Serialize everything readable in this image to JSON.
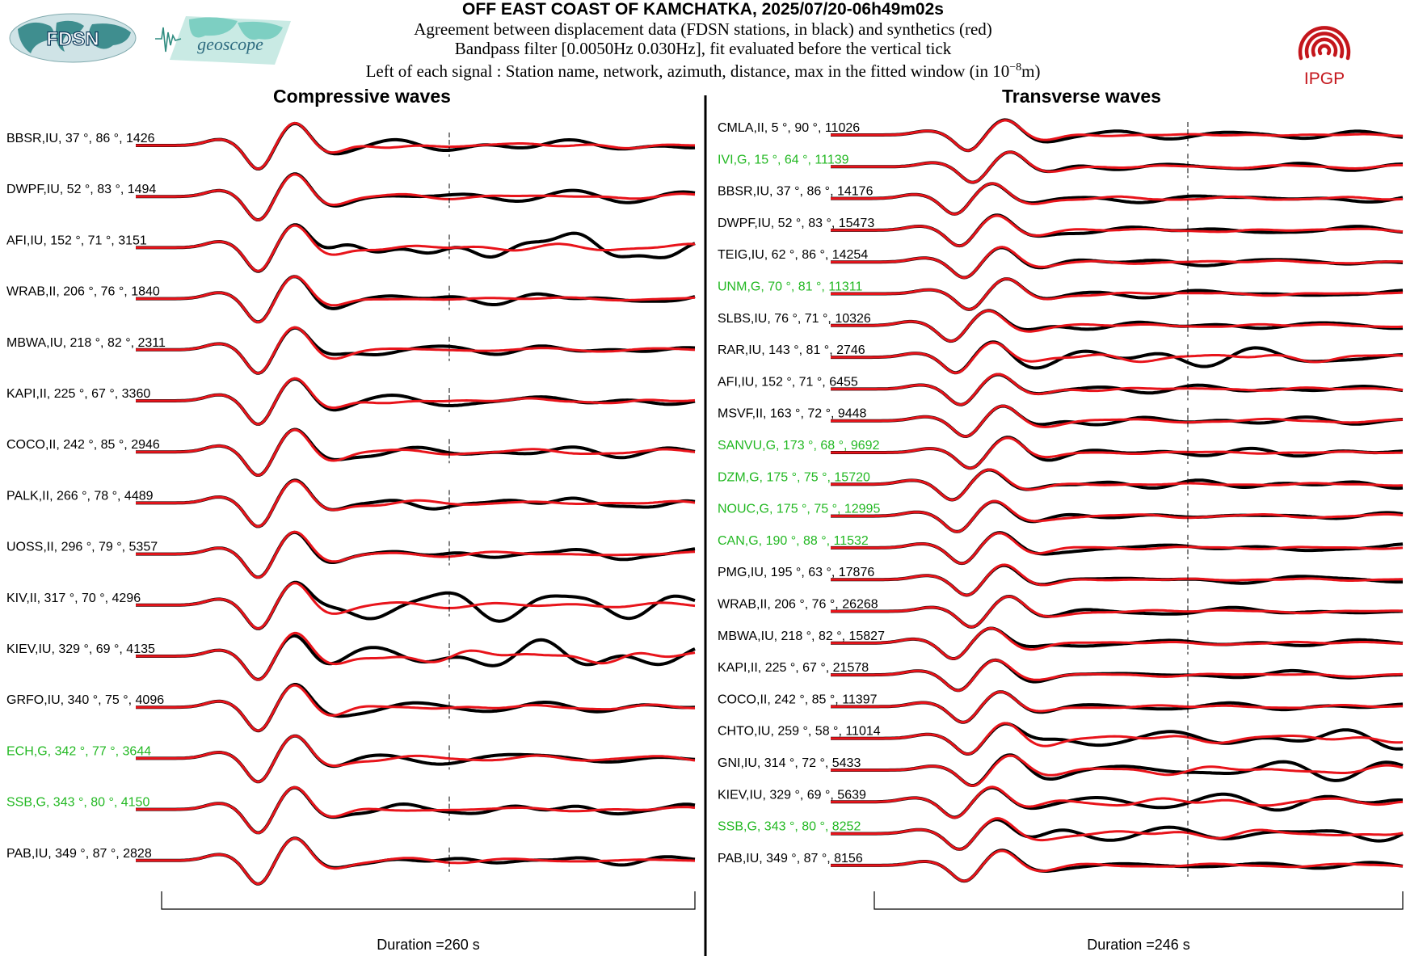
{
  "header": {
    "title": "OFF EAST COAST OF KAMCHATKA, 2025/07/20-06h49m02s",
    "line1": "Agreement between displacement data (FDSN stations, in black) and synthetics (red)",
    "line2": "Bandpass filter [0.0050Hz 0.030Hz], fit evaluated before the vertical tick",
    "line3_prefix": "Left of each signal : Station name, network, azimuth, distance, max in the fitted window (in 10",
    "line3_exp": "−8",
    "line3_suffix": "m)"
  },
  "logos": {
    "fdsn": "FDSN",
    "geoscope": "geoscope",
    "ipgp": "IPGP"
  },
  "colors": {
    "data": "#000000",
    "synthetic": "#e8141b",
    "geoscope_label": "#22b822",
    "default_label": "#000000",
    "ipgp": "#c4161c",
    "geoscope_logo": "#3cb8a6",
    "fdsn_logo": "#2a7a80"
  },
  "chart_data": [
    {
      "type": "line",
      "title": "Compressive waves",
      "duration_label": "Duration =260 s",
      "stations": [
        {
          "label": "BBSR,IU, 37 °, 86 °, 1426",
          "network": "IU"
        },
        {
          "label": "DWPF,IU, 52 °, 83 °, 1494",
          "network": "IU"
        },
        {
          "label": "AFI,IU, 152 °, 71 °, 3151",
          "network": "IU"
        },
        {
          "label": "WRAB,II, 206 °, 76 °, 1840",
          "network": "II"
        },
        {
          "label": "MBWA,IU, 218 °, 82 °, 2311",
          "network": "IU"
        },
        {
          "label": "KAPI,II, 225 °, 67 °, 3360",
          "network": "II"
        },
        {
          "label": "COCO,II, 242 °, 85 °, 2946",
          "network": "II"
        },
        {
          "label": "PALK,II, 266 °, 78 °, 4489",
          "network": "II"
        },
        {
          "label": "UOSS,II, 296 °, 79 °, 5357",
          "network": "II"
        },
        {
          "label": "KIV,II, 317 °, 70 °, 4296",
          "network": "II"
        },
        {
          "label": "KIEV,IU, 329 °, 69 °, 4135",
          "network": "IU"
        },
        {
          "label": "GRFO,IU, 340 °, 75 °, 4096",
          "network": "IU"
        },
        {
          "label": "ECH,G, 342 °, 77 °, 3644",
          "network": "G"
        },
        {
          "label": "SSB,G, 343 °, 80 °, 4150",
          "network": "G"
        },
        {
          "label": "PAB,IU, 349 °, 87 °, 2828",
          "network": "IU"
        }
      ]
    },
    {
      "type": "line",
      "title": "Transverse waves",
      "duration_label": "Duration =246 s",
      "stations": [
        {
          "label": "CMLA,II, 5 °, 90 °, 11026",
          "network": "II"
        },
        {
          "label": "IVI,G, 15 °, 64 °, 11139",
          "network": "G"
        },
        {
          "label": "BBSR,IU, 37 °, 86 °, 14176",
          "network": "IU"
        },
        {
          "label": "DWPF,IU, 52 °, 83 °, 15473",
          "network": "IU"
        },
        {
          "label": "TEIG,IU, 62 °, 86 °, 14254",
          "network": "IU"
        },
        {
          "label": "UNM,G, 70 °, 81 °, 11311",
          "network": "G"
        },
        {
          "label": "SLBS,IU, 76 °, 71 °, 10326",
          "network": "IU"
        },
        {
          "label": "RAR,IU, 143 °, 81 °, 2746",
          "network": "IU"
        },
        {
          "label": "AFI,IU, 152 °, 71 °, 6455",
          "network": "IU"
        },
        {
          "label": "MSVF,II, 163 °, 72 °, 9448",
          "network": "II"
        },
        {
          "label": "SANVU,G, 173 °, 68 °, 9692",
          "network": "G"
        },
        {
          "label": "DZM,G, 175 °, 75 °, 15720",
          "network": "G"
        },
        {
          "label": "NOUC,G, 175 °, 75 °, 12995",
          "network": "G"
        },
        {
          "label": "CAN,G, 190 °, 88 °, 11532",
          "network": "G"
        },
        {
          "label": "PMG,IU, 195 °, 63 °, 17876",
          "network": "IU"
        },
        {
          "label": "WRAB,II, 206 °, 76 °, 26268",
          "network": "II"
        },
        {
          "label": "MBWA,IU, 218 °, 82 °, 15827",
          "network": "IU"
        },
        {
          "label": "KAPI,II, 225 °, 67 °, 21578",
          "network": "II"
        },
        {
          "label": "COCO,II, 242 °, 85 °, 11397",
          "network": "II"
        },
        {
          "label": "CHTO,IU, 259 °, 58 °, 11014",
          "network": "IU"
        },
        {
          "label": "GNI,IU, 314 °, 72 °, 5433",
          "network": "IU"
        },
        {
          "label": "KIEV,IU, 329 °, 69 °, 5639",
          "network": "IU"
        },
        {
          "label": "SSB,G, 343 °, 80 °, 8252",
          "network": "G"
        },
        {
          "label": "PAB,IU, 349 °, 87 °, 8156",
          "network": "IU"
        }
      ]
    }
  ]
}
